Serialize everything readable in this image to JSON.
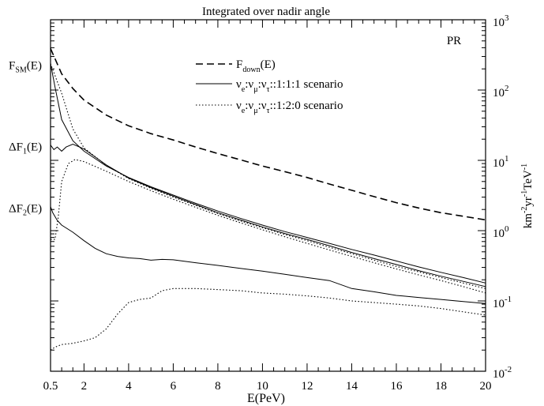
{
  "chart_data": {
    "type": "line",
    "title": "Integrated over nadir angle",
    "xlabel": "E(PeV)",
    "ylabel_right": {
      "base": "km",
      "sup1": "-2",
      "mid1": "yr",
      "sup2": "-1",
      "mid2": "TeV",
      "sup3": "-1"
    },
    "annotation": "PR",
    "xlim": [
      0.5,
      20
    ],
    "ylim": [
      0.01,
      1000
    ],
    "yscale": "log",
    "grid": false,
    "legend_position": "top-right",
    "x_ticks": [
      {
        "v": 0.5,
        "label": "0.5"
      },
      {
        "v": 2,
        "label": "2"
      },
      {
        "v": 4,
        "label": "4"
      },
      {
        "v": 6,
        "label": "6"
      },
      {
        "v": 8,
        "label": "8"
      },
      {
        "v": 10,
        "label": "10"
      },
      {
        "v": 12,
        "label": "12"
      },
      {
        "v": 14,
        "label": "14"
      },
      {
        "v": 16,
        "label": "16"
      },
      {
        "v": 18,
        "label": "18"
      },
      {
        "v": 20,
        "label": "20"
      }
    ],
    "y_ticks_right": [
      {
        "v": 1000,
        "base": "10",
        "exp": "3"
      },
      {
        "v": 100,
        "base": "10",
        "exp": "2"
      },
      {
        "v": 10,
        "base": "10",
        "exp": "1"
      },
      {
        "v": 1,
        "base": "10",
        "exp": "0"
      },
      {
        "v": 0.1,
        "base": "10",
        "exp": "-1"
      },
      {
        "v": 0.01,
        "base": "10",
        "exp": "-2"
      }
    ],
    "left_labels": [
      {
        "y": 238,
        "main": "F",
        "sub": "SM",
        "tail": "(E)"
      },
      {
        "y": 16.5,
        "main": "ΔF",
        "sub": "1",
        "tail": "(E)"
      },
      {
        "y": 2.2,
        "main": "ΔF",
        "sub": "2",
        "tail": "(E)"
      }
    ],
    "legend": [
      {
        "style": "dashed",
        "parts": [
          {
            "t": "F"
          },
          {
            "t": "down",
            "s": "sub"
          },
          {
            "t": "(E)"
          }
        ]
      },
      {
        "style": "solid",
        "parts": [
          {
            "t": "ν"
          },
          {
            "t": "e",
            "s": "sub"
          },
          {
            "t": ":ν"
          },
          {
            "t": "μ",
            "s": "sub"
          },
          {
            "t": ":ν"
          },
          {
            "t": "τ",
            "s": "sub"
          },
          {
            "t": "::1:1:1 scenario"
          }
        ]
      },
      {
        "style": "dotted",
        "parts": [
          {
            "t": "ν"
          },
          {
            "t": "e",
            "s": "sub"
          },
          {
            "t": ":ν"
          },
          {
            "t": "μ",
            "s": "sub"
          },
          {
            "t": ":ν"
          },
          {
            "t": "τ",
            "s": "sub"
          },
          {
            "t": "::1:2:0 scenario"
          }
        ]
      }
    ],
    "series": [
      {
        "style": "dashed",
        "x": [
          0.5,
          1,
          1.5,
          2,
          3,
          4,
          5,
          6,
          7,
          8,
          9,
          10,
          11,
          12,
          13,
          14,
          15,
          16,
          17,
          18,
          19,
          20
        ],
        "y": [
          390,
          170,
          105,
          72,
          44,
          31,
          24,
          19.5,
          15.5,
          12.5,
          10.2,
          8.3,
          6.9,
          5.7,
          4.6,
          3.75,
          3.05,
          2.5,
          2.1,
          1.8,
          1.6,
          1.42
        ]
      },
      {
        "style": "solid",
        "x": [
          0.5,
          0.7,
          1,
          1.5,
          2,
          3,
          4,
          5,
          6,
          7,
          8,
          9,
          10,
          11,
          12,
          13,
          14,
          15,
          16,
          17,
          18,
          19,
          20
        ],
        "y": [
          238,
          110,
          38,
          19,
          13.5,
          8.3,
          5.7,
          4.2,
          3.2,
          2.45,
          1.9,
          1.5,
          1.2,
          0.97,
          0.8,
          0.66,
          0.54,
          0.45,
          0.37,
          0.305,
          0.255,
          0.215,
          0.18
        ]
      },
      {
        "style": "solid",
        "x": [
          0.5,
          0.65,
          0.8,
          1,
          1.2,
          1.5,
          2,
          3,
          4,
          5,
          6,
          7,
          8,
          9,
          10,
          11,
          12,
          13,
          14,
          15,
          16,
          17,
          18,
          19,
          20
        ],
        "y": [
          16.5,
          14.2,
          15.5,
          13.5,
          15.5,
          17,
          14.5,
          8.6,
          5.6,
          4.1,
          3.1,
          2.35,
          1.8,
          1.42,
          1.13,
          0.91,
          0.75,
          0.61,
          0.49,
          0.4,
          0.33,
          0.27,
          0.225,
          0.19,
          0.16
        ]
      },
      {
        "style": "dotted",
        "x": [
          0.5,
          1,
          1.5,
          2,
          3,
          4,
          5,
          6,
          7,
          8,
          9,
          10,
          11,
          12,
          13,
          14,
          15,
          16,
          17,
          18,
          19,
          20
        ],
        "y": [
          238,
          90,
          28,
          15,
          8.5,
          5.5,
          4,
          3,
          2.3,
          1.75,
          1.38,
          1.1,
          0.88,
          0.72,
          0.58,
          0.47,
          0.38,
          0.31,
          0.26,
          0.215,
          0.18,
          0.15
        ]
      },
      {
        "style": "dotted",
        "x": [
          0.5,
          0.7,
          0.85,
          1,
          1.3,
          1.6,
          2,
          3,
          4,
          5,
          6,
          7,
          8,
          9,
          10,
          11,
          12,
          13,
          14,
          15,
          16,
          17,
          18,
          19,
          20
        ],
        "y": [
          0.75,
          0.75,
          1.6,
          5,
          9,
          10.3,
          9.6,
          7,
          5,
          3.7,
          2.8,
          2.15,
          1.65,
          1.3,
          1.03,
          0.82,
          0.66,
          0.53,
          0.43,
          0.35,
          0.285,
          0.235,
          0.195,
          0.16,
          0.13
        ]
      },
      {
        "style": "solid",
        "x": [
          0.5,
          0.6,
          0.8,
          1,
          1.5,
          2,
          2.5,
          3,
          3.5,
          4,
          4.5,
          5,
          5.5,
          6,
          7,
          8,
          9,
          10,
          11,
          12,
          13,
          14,
          15,
          16,
          17,
          18,
          19,
          20
        ],
        "y": [
          2.2,
          1.8,
          1.4,
          1.2,
          0.95,
          0.72,
          0.56,
          0.47,
          0.43,
          0.41,
          0.4,
          0.38,
          0.39,
          0.385,
          0.35,
          0.32,
          0.29,
          0.265,
          0.24,
          0.215,
          0.195,
          0.15,
          0.135,
          0.12,
          0.112,
          0.105,
          0.098,
          0.092
        ]
      },
      {
        "style": "dotted",
        "x": [
          0.5,
          0.7,
          1,
          1.5,
          2,
          2.5,
          3,
          3.5,
          4,
          4.5,
          5,
          5.5,
          6,
          7,
          8,
          9,
          10,
          11,
          12,
          13,
          14,
          15,
          16,
          17,
          18,
          19,
          20
        ],
        "y": [
          0.02,
          0.022,
          0.024,
          0.025,
          0.027,
          0.03,
          0.04,
          0.065,
          0.095,
          0.105,
          0.11,
          0.14,
          0.15,
          0.15,
          0.145,
          0.14,
          0.13,
          0.125,
          0.118,
          0.11,
          0.1,
          0.095,
          0.09,
          0.085,
          0.078,
          0.07,
          0.063
        ]
      }
    ]
  }
}
